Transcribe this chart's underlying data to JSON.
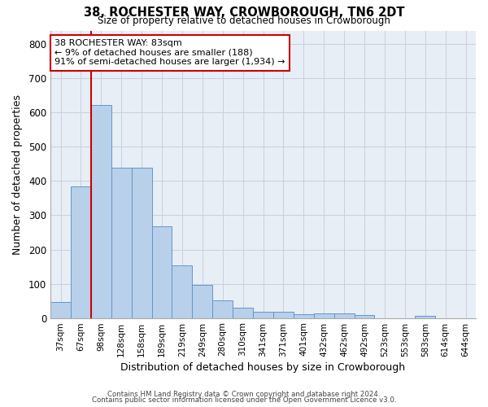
{
  "title": "38, ROCHESTER WAY, CROWBOROUGH, TN6 2DT",
  "subtitle": "Size of property relative to detached houses in Crowborough",
  "xlabel": "Distribution of detached houses by size in Crowborough",
  "ylabel": "Number of detached properties",
  "categories": [
    "37sqm",
    "67sqm",
    "98sqm",
    "128sqm",
    "158sqm",
    "189sqm",
    "219sqm",
    "249sqm",
    "280sqm",
    "310sqm",
    "341sqm",
    "371sqm",
    "401sqm",
    "432sqm",
    "462sqm",
    "492sqm",
    "523sqm",
    "553sqm",
    "583sqm",
    "614sqm",
    "644sqm"
  ],
  "bar_values": [
    47,
    385,
    623,
    440,
    440,
    268,
    153,
    97,
    52,
    29,
    17,
    17,
    11,
    13,
    13,
    8,
    0,
    0,
    7,
    0,
    0
  ],
  "bar_color": "#b8d0ea",
  "bar_edge_color": "#6496c8",
  "bar_edge_width": 0.7,
  "grid_color": "#c8d0dc",
  "bg_color": "#e8eef6",
  "ylim": [
    0,
    840
  ],
  "yticks": [
    0,
    100,
    200,
    300,
    400,
    500,
    600,
    700,
    800
  ],
  "property_line_color": "#cc0000",
  "property_line_x": 1.5,
  "annotation_text": "38 ROCHESTER WAY: 83sqm\n← 9% of detached houses are smaller (188)\n91% of semi-detached houses are larger (1,934) →",
  "annotation_box_color": "#cc0000",
  "footer_line1": "Contains HM Land Registry data © Crown copyright and database right 2024.",
  "footer_line2": "Contains public sector information licensed under the Open Government Licence v3.0."
}
